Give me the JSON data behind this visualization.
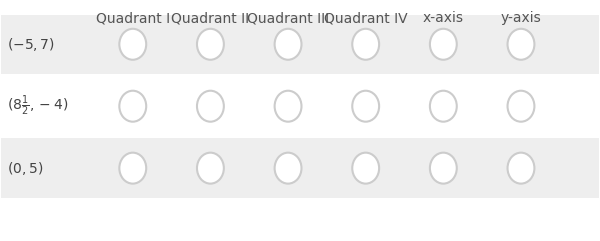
{
  "background_color": "#ffffff",
  "row_bg_colors": [
    "#eeeeee",
    "#ffffff",
    "#eeeeee"
  ],
  "header_labels": [
    "Quadrant I",
    "Quadrant II",
    "Quadrant III",
    "Quadrant IV",
    "x-axis",
    "y-axis"
  ],
  "row_labels": [
    "(-5, 7)",
    "(8\\tfrac{1}{2}, -4)",
    "(0, 5)"
  ],
  "row_labels_math": [
    "$(-5, 7)$",
    "$(8\\dfrac{1}{2}, -4)$",
    "$(0, 5)$"
  ],
  "num_cols": 6,
  "num_rows": 3,
  "header_fontsize": 10,
  "row_label_fontsize": 10,
  "circle_color": "#cccccc",
  "circle_fill": "#ffffff",
  "text_color": "#444444",
  "header_text_color": "#555555"
}
